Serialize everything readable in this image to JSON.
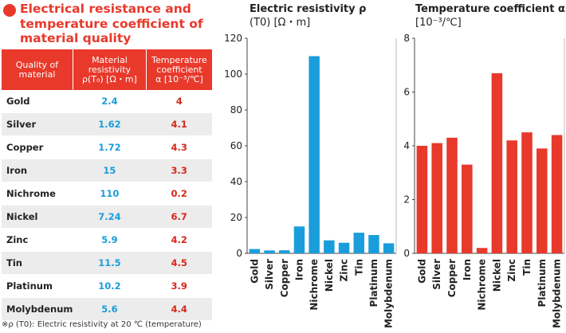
{
  "title": "Electrical resistance and temperature coefficient of material quality",
  "table": {
    "headers": {
      "material": "Quality of material",
      "resistivity_line1": "Material resistivity",
      "resistivity_line2": "ρ(T₀) [Ω・m]",
      "tc_line1": "Temperature coefficient",
      "tc_line2": "α [10⁻³/℃]"
    },
    "rows": [
      {
        "material": "Gold",
        "resistivity": "2.4",
        "tc": "4"
      },
      {
        "material": "Silver",
        "resistivity": "1.62",
        "tc": "4.1"
      },
      {
        "material": "Copper",
        "resistivity": "1.72",
        "tc": "4.3"
      },
      {
        "material": "Iron",
        "resistivity": "15",
        "tc": "3.3"
      },
      {
        "material": "Nichrome",
        "resistivity": "110",
        "tc": "0.2"
      },
      {
        "material": "Nickel",
        "resistivity": "7.24",
        "tc": "6.7"
      },
      {
        "material": "Zinc",
        "resistivity": "5.9",
        "tc": "4.2"
      },
      {
        "material": "Tin",
        "resistivity": "11.5",
        "tc": "4.5"
      },
      {
        "material": "Platinum",
        "resistivity": "10.2",
        "tc": "3.9"
      },
      {
        "material": "Molybdenum",
        "resistivity": "5.6",
        "tc": "4.4"
      }
    ]
  },
  "footnote": "※ρ (T0): Electric resistivity at 20 ℃ (temperature)",
  "chart_data": [
    {
      "type": "bar",
      "title": "Electric resistivity ρ",
      "subtitle": "(T0) [Ω・m]",
      "categories": [
        "Gold",
        "Silver",
        "Copper",
        "Iron",
        "Nichrome",
        "Nickel",
        "Zinc",
        "Tin",
        "Platinum",
        "Molybdenum"
      ],
      "values": [
        2.4,
        1.62,
        1.72,
        15,
        110,
        7.24,
        5.9,
        11.5,
        10.2,
        5.6
      ],
      "ylim": [
        0,
        120
      ],
      "yticks": [
        0,
        20,
        40,
        60,
        80,
        100,
        120
      ],
      "color": "#1a9ddb"
    },
    {
      "type": "bar",
      "title": "Temperature coefficient α",
      "subtitle": "[10⁻³/℃]",
      "categories": [
        "Gold",
        "Silver",
        "Copper",
        "Iron",
        "Nichrome",
        "Nickel",
        "Zinc",
        "Tin",
        "Platinum",
        "Molybdenum"
      ],
      "values": [
        4,
        4.1,
        4.3,
        3.3,
        0.2,
        6.7,
        4.2,
        4.5,
        3.9,
        4.4
      ],
      "ylim": [
        0,
        8
      ],
      "yticks": [
        0,
        2,
        4,
        6,
        8
      ],
      "color": "#e8392b"
    }
  ]
}
